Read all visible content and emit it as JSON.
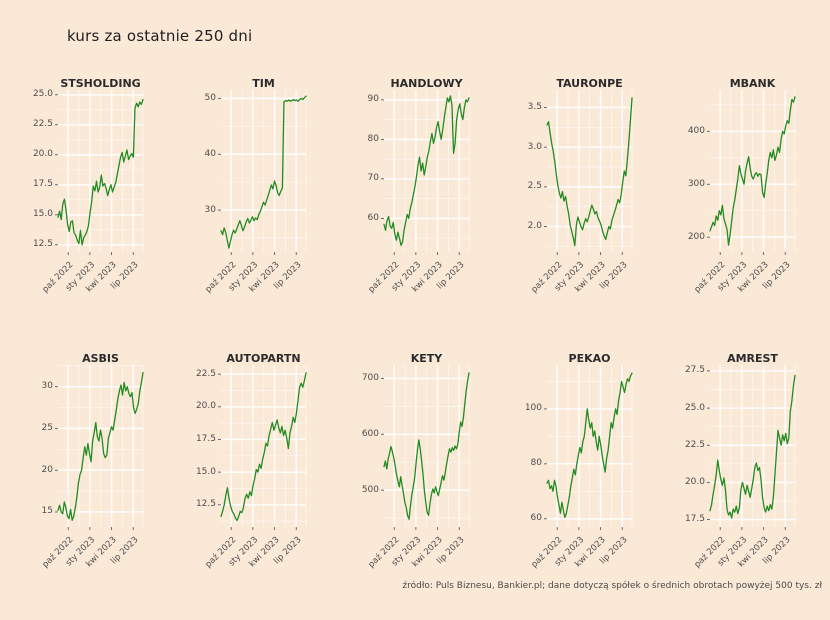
{
  "title": "kurs za ostatnie 250 dni",
  "footer": "źródło: Puls Biznesu, Bankier.pl; dane dotyczą spółek o średnich obrotach powyżej 500 tys. zł",
  "x_labels": [
    "paź 2022",
    "sty 2023",
    "kwi 2023",
    "lip 2023"
  ],
  "line_color": "#228B22",
  "background_color": "#fbe9d8",
  "grid_color": "#ffffff",
  "chart_data": [
    {
      "type": "line",
      "name": "STSHOLDING",
      "ylim": [
        11.9,
        25.4
      ],
      "yticks": [
        12.5,
        15.0,
        17.5,
        20.0,
        22.5,
        25.0
      ],
      "ytick_labels": [
        "12.5",
        "15.0",
        "17.5",
        "20.0",
        "22.5",
        "25.0"
      ],
      "values": [
        14.8,
        15.3,
        14.6,
        15.9,
        16.3,
        15.4,
        14.2,
        13.6,
        14.4,
        14.5,
        13.5,
        13.3,
        12.9,
        12.6,
        13.7,
        12.5,
        13.1,
        13.3,
        13.6,
        14.1,
        15.2,
        16.1,
        17.4,
        17.0,
        17.8,
        16.9,
        17.3,
        18.3,
        17.4,
        17.6,
        17.2,
        16.6,
        17.1,
        17.5,
        16.9,
        17.3,
        17.7,
        18.4,
        19.1,
        19.8,
        20.2,
        19.4,
        19.9,
        20.4,
        19.6,
        19.9,
        20.1,
        19.8,
        23.9,
        24.3,
        24.0,
        24.4,
        24.2,
        24.6
      ]
    },
    {
      "type": "line",
      "name": "TIM",
      "ylim": [
        22.5,
        51.5
      ],
      "yticks": [
        30,
        40,
        50
      ],
      "ytick_labels": [
        "30",
        "40",
        "50"
      ],
      "values": [
        26.3,
        25.6,
        26.8,
        26.0,
        24.6,
        23.2,
        24.4,
        25.6,
        26.4,
        25.9,
        26.6,
        27.4,
        28.1,
        27.2,
        26.3,
        27.0,
        27.9,
        28.5,
        27.7,
        28.2,
        28.8,
        28.1,
        28.6,
        28.3,
        29.2,
        29.8,
        30.6,
        31.4,
        30.9,
        31.8,
        32.6,
        33.6,
        34.5,
        33.8,
        35.2,
        34.4,
        33.1,
        32.6,
        33.4,
        33.9,
        49.4,
        49.6,
        49.5,
        49.7,
        49.5,
        49.6,
        49.8,
        49.6,
        49.7,
        49.5,
        49.8,
        50.0,
        49.8,
        50.1,
        50.4
      ]
    },
    {
      "type": "line",
      "name": "HANDLOWY",
      "ylim": [
        51.5,
        92.5
      ],
      "yticks": [
        60,
        70,
        80,
        90
      ],
      "ytick_labels": [
        "60",
        "70",
        "80",
        "90"
      ],
      "values": [
        58.5,
        57.0,
        59.5,
        60.5,
        58.0,
        57.5,
        59.0,
        56.0,
        54.5,
        56.5,
        55.0,
        53.2,
        54.0,
        57.0,
        59.0,
        61.0,
        60.0,
        62.5,
        64.0,
        66.0,
        68.0,
        70.5,
        73.5,
        75.5,
        72.0,
        74.0,
        71.0,
        73.0,
        75.5,
        77.0,
        79.5,
        81.5,
        79.0,
        80.5,
        83.0,
        84.5,
        82.0,
        80.0,
        82.5,
        85.5,
        88.0,
        90.5,
        89.5,
        91.0,
        88.5,
        76.5,
        79.0,
        85.0,
        87.5,
        89.0,
        86.5,
        85.0,
        88.0,
        90.0,
        89.5,
        90.5
      ]
    },
    {
      "type": "line",
      "name": "TAURONPE",
      "ylim": [
        1.68,
        3.72
      ],
      "yticks": [
        2.0,
        2.5,
        3.0,
        3.5
      ],
      "ytick_labels": [
        "2.0",
        "2.5",
        "3.0",
        "3.5"
      ],
      "values": [
        3.28,
        3.32,
        3.18,
        3.05,
        2.95,
        2.82,
        2.66,
        2.52,
        2.42,
        2.36,
        2.44,
        2.32,
        2.38,
        2.26,
        2.16,
        2.02,
        1.94,
        1.86,
        1.76,
        2.02,
        2.12,
        2.06,
        2.0,
        1.96,
        2.04,
        2.1,
        2.06,
        2.12,
        2.2,
        2.27,
        2.22,
        2.16,
        2.19,
        2.11,
        2.07,
        2.02,
        1.94,
        1.88,
        1.84,
        1.92,
        2.0,
        1.97,
        2.08,
        2.14,
        2.2,
        2.27,
        2.34,
        2.3,
        2.4,
        2.56,
        2.7,
        2.64,
        2.84,
        3.08,
        3.34,
        3.62
      ]
    },
    {
      "type": "line",
      "name": "MBANK",
      "ylim": [
        172,
        478
      ],
      "yticks": [
        200,
        300,
        400
      ],
      "ytick_labels": [
        "200",
        "300",
        "400"
      ],
      "values": [
        212,
        220,
        228,
        222,
        240,
        232,
        250,
        242,
        260,
        235,
        225,
        215,
        185,
        205,
        230,
        255,
        270,
        290,
        310,
        335,
        320,
        310,
        300,
        325,
        340,
        352,
        330,
        315,
        310,
        318,
        322,
        315,
        320,
        318,
        285,
        275,
        300,
        320,
        345,
        360,
        350,
        365,
        345,
        355,
        370,
        360,
        385,
        400,
        395,
        410,
        420,
        415,
        440,
        460,
        455,
        465
      ]
    },
    {
      "type": "line",
      "name": "ASBIS",
      "ylim": [
        13.2,
        32.6
      ],
      "yticks": [
        15,
        20,
        25,
        30
      ],
      "ytick_labels": [
        "15",
        "20",
        "25",
        "30"
      ],
      "values": [
        15.2,
        15.8,
        15.0,
        14.8,
        16.2,
        15.5,
        14.5,
        14.2,
        15.3,
        14.0,
        14.5,
        15.5,
        16.8,
        18.5,
        19.5,
        20.0,
        21.5,
        22.8,
        21.8,
        23.2,
        22.0,
        21.0,
        23.5,
        24.5,
        25.7,
        24.0,
        23.5,
        24.8,
        23.8,
        22.0,
        21.5,
        21.8,
        23.8,
        24.5,
        25.2,
        24.8,
        26.0,
        27.2,
        28.5,
        29.5,
        30.2,
        29.0,
        30.5,
        29.5,
        30.0,
        29.2,
        28.8,
        29.3,
        27.5,
        26.8,
        27.3,
        28.0,
        29.5,
        30.5,
        31.7
      ]
    },
    {
      "type": "line",
      "name": "AUTOPARTN",
      "ylim": [
        10.8,
        23.2
      ],
      "yticks": [
        12.5,
        15.0,
        17.5,
        20.0,
        22.5
      ],
      "ytick_labels": [
        "12.5",
        "15.0",
        "17.5",
        "20.0",
        "22.5"
      ],
      "values": [
        11.6,
        12.0,
        12.5,
        13.2,
        13.8,
        13.0,
        12.4,
        12.0,
        11.8,
        11.5,
        11.3,
        11.6,
        12.0,
        11.9,
        12.3,
        13.0,
        13.3,
        13.0,
        13.5,
        13.2,
        14.0,
        14.5,
        15.2,
        15.0,
        15.6,
        15.3,
        16.0,
        16.5,
        17.2,
        17.0,
        17.8,
        18.3,
        18.8,
        18.2,
        18.6,
        19.0,
        18.4,
        18.0,
        18.5,
        17.8,
        18.2,
        17.6,
        16.8,
        18.0,
        18.5,
        19.2,
        18.8,
        19.5,
        20.5,
        21.5,
        21.8,
        21.5,
        22.0,
        22.6
      ]
    },
    {
      "type": "line",
      "name": "KETY",
      "ylim": [
        434,
        724
      ],
      "yticks": [
        500,
        600,
        700
      ],
      "ytick_labels": [
        "500",
        "600",
        "700"
      ],
      "values": [
        542,
        552,
        538,
        556,
        566,
        578,
        569,
        558,
        544,
        528,
        516,
        506,
        524,
        508,
        494,
        478,
        468,
        454,
        448,
        472,
        492,
        506,
        522,
        548,
        572,
        590,
        574,
        552,
        528,
        498,
        478,
        460,
        455,
        476,
        492,
        502,
        495,
        506,
        497,
        490,
        502,
        514,
        526,
        518,
        532,
        548,
        562,
        574,
        568,
        576,
        571,
        579,
        574,
        582,
        604,
        622,
        614,
        630,
        655,
        678,
        695,
        710
      ]
    },
    {
      "type": "line",
      "name": "PEKAO",
      "ylim": [
        57,
        116
      ],
      "yticks": [
        60,
        80,
        100
      ],
      "ytick_labels": [
        "60",
        "80",
        "100"
      ],
      "values": [
        73,
        74,
        71,
        72,
        70,
        74,
        72,
        68,
        65,
        62,
        66,
        63,
        60.5,
        62,
        65,
        68,
        72,
        75,
        78,
        76,
        80,
        83,
        86,
        84,
        88,
        90,
        95,
        100,
        96,
        93,
        95,
        90,
        92,
        88,
        85,
        90,
        87,
        83,
        80,
        77,
        82,
        85,
        90,
        95,
        93,
        97,
        100,
        98,
        103,
        106,
        110,
        108,
        106,
        109,
        111,
        110,
        112,
        113
      ]
    },
    {
      "type": "line",
      "name": "AMREST",
      "ylim": [
        17.0,
        27.9
      ],
      "yticks": [
        17.5,
        20.0,
        22.5,
        25.0,
        27.5
      ],
      "ytick_labels": [
        "17.5",
        "20.0",
        "22.5",
        "25.0",
        "27.5"
      ],
      "values": [
        18.1,
        18.5,
        19.2,
        19.8,
        20.5,
        21.5,
        20.8,
        20.2,
        19.8,
        20.3,
        19.5,
        18.2,
        17.8,
        18.0,
        17.6,
        18.2,
        18.0,
        18.4,
        17.9,
        18.3,
        19.5,
        20.0,
        19.6,
        19.2,
        19.8,
        19.4,
        19.0,
        19.6,
        20.2,
        21.0,
        21.3,
        20.8,
        21.0,
        20.2,
        19.0,
        18.3,
        18.0,
        18.4,
        18.1,
        18.5,
        18.2,
        19.0,
        20.5,
        22.0,
        23.5,
        23.0,
        22.5,
        23.2,
        22.8,
        23.3,
        22.6,
        23.0,
        24.8,
        25.5,
        26.5,
        27.2
      ]
    }
  ]
}
